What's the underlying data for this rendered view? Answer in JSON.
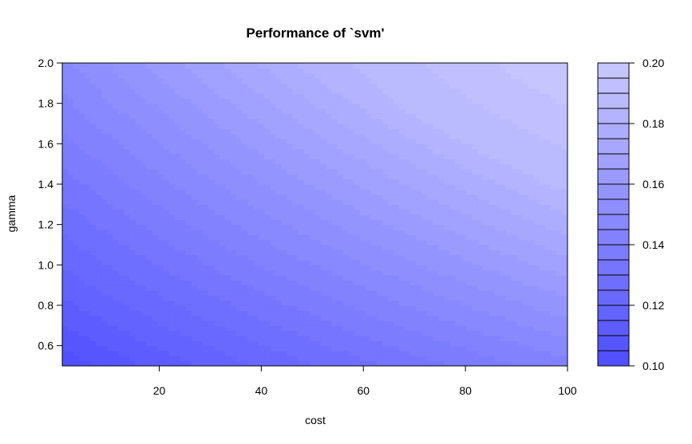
{
  "chart_data": {
    "type": "heatmap",
    "title": "Performance of `svm'",
    "xlabel": "cost",
    "ylabel": "gamma",
    "xlim": [
      1,
      100
    ],
    "ylim": [
      0.5,
      2.0
    ],
    "x_ticks": [
      20,
      40,
      60,
      80,
      100
    ],
    "y_ticks": [
      0.6,
      0.8,
      1.0,
      1.2,
      1.4,
      1.6,
      1.8,
      2.0
    ],
    "z_range": [
      0.1,
      0.2
    ],
    "legend_ticks": [
      0.1,
      0.12,
      0.14,
      0.16,
      0.18,
      0.2
    ],
    "levels": [
      0.1,
      0.105,
      0.11,
      0.115,
      0.12,
      0.125,
      0.13,
      0.135,
      0.14,
      0.145,
      0.15,
      0.155,
      0.16,
      0.165,
      0.17,
      0.175,
      0.18,
      0.185,
      0.19,
      0.195,
      0.2
    ],
    "colors": {
      "low": "#4d4dff",
      "high": "#c9c9ff"
    },
    "legend_position": "right",
    "grid": false
  }
}
